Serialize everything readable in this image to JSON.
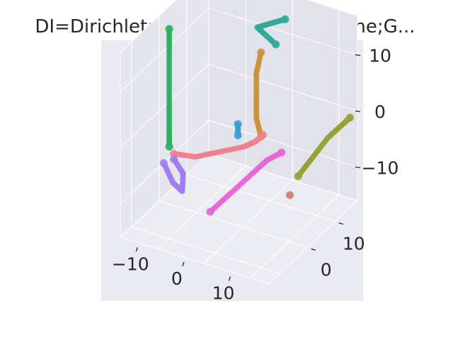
{
  "chart_data": {
    "type": "scatter",
    "projection": "3d",
    "title": "DI=Dirichlet;SD=2;ED=16;GM=None;G...",
    "xlabel": "",
    "ylabel": "",
    "zlabel": "",
    "x_ticks": [
      "−10",
      "0",
      "10"
    ],
    "y_ticks": [
      "0",
      "10"
    ],
    "z_ticks": [
      "10",
      "0",
      "−10"
    ],
    "grid": true,
    "legend": "none",
    "colors": {
      "pane": "#e5e5ed",
      "grid": "#ffffff",
      "text": "#262626",
      "series": [
        "#2eaf62",
        "#32a89a",
        "#c9933a",
        "#3aa0cf",
        "#f07f8e",
        "#a17ef0",
        "#e865d6",
        "#97a135",
        "#d07b6e"
      ]
    },
    "series": [
      {
        "color": "#2eaf62",
        "points": [
          [
            -13,
            2,
            14
          ],
          [
            -13,
            2,
            10
          ],
          [
            -13,
            2,
            5
          ],
          [
            -13,
            2,
            0
          ],
          [
            -13,
            2,
            -4
          ],
          [
            -13,
            2,
            -7
          ]
        ]
      },
      {
        "color": "#32a89a",
        "points": [
          [
            6,
            12,
            16
          ],
          [
            4,
            12,
            15
          ],
          [
            2,
            12,
            14
          ],
          [
            0,
            12,
            13
          ],
          [
            2,
            12,
            12
          ],
          [
            4,
            12,
            11
          ]
        ]
      },
      {
        "color": "#c9933a",
        "points": [
          [
            2,
            10,
            10
          ],
          [
            1,
            10,
            6
          ],
          [
            1,
            10,
            2
          ],
          [
            1,
            10,
            -2
          ],
          [
            2,
            10,
            -5
          ]
        ]
      },
      {
        "color": "#3aa0cf",
        "points": [
          [
            0,
            5,
            -1
          ],
          [
            0,
            5,
            -3
          ]
        ]
      },
      {
        "color": "#f07f8e",
        "points": [
          [
            -12,
            2,
            -8
          ],
          [
            -8,
            3,
            -8
          ],
          [
            -4,
            5,
            -7
          ],
          [
            0,
            7,
            -6
          ],
          [
            2,
            8,
            -5
          ],
          [
            3,
            9,
            -4
          ]
        ]
      },
      {
        "color": "#a17ef0",
        "points": [
          [
            -13,
            0,
            -9
          ],
          [
            -11,
            0,
            -12
          ],
          [
            -9,
            0,
            -13
          ],
          [
            -10,
            2,
            -11
          ],
          [
            -12,
            2,
            -9
          ]
        ]
      },
      {
        "color": "#e865d6",
        "points": [
          [
            0,
            -5,
            -12
          ],
          [
            3,
            -3,
            -9
          ],
          [
            6,
            0,
            -6
          ],
          [
            8,
            2,
            -4
          ],
          [
            10,
            4,
            -3
          ]
        ]
      },
      {
        "color": "#97a135",
        "points": [
          [
            10,
            10,
            -10
          ],
          [
            12,
            12,
            -7
          ],
          [
            14,
            14,
            -4
          ],
          [
            16,
            16,
            -2
          ],
          [
            17,
            17,
            -1
          ]
        ]
      },
      {
        "color": "#d07b6e",
        "points": [
          [
            10,
            7,
            -12
          ]
        ]
      }
    ]
  }
}
